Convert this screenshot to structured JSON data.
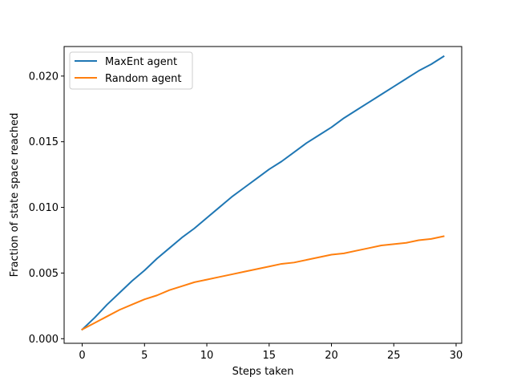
{
  "chart_data": {
    "type": "line",
    "xlabel": "Steps taken",
    "ylabel": "Fraction of state space reached",
    "xlim": [
      -1.45,
      30.45
    ],
    "ylim": [
      -0.00035,
      0.02225
    ],
    "xticks": [
      0,
      5,
      10,
      15,
      20,
      25,
      30
    ],
    "yticks": [
      0.0,
      0.005,
      0.01,
      0.015,
      0.02
    ],
    "xtick_labels": [
      "0",
      "5",
      "10",
      "15",
      "20",
      "25",
      "30"
    ],
    "ytick_labels": [
      "0.000",
      "0.005",
      "0.010",
      "0.015",
      "0.020"
    ],
    "grid": false,
    "legend_position": "upper-left",
    "series": [
      {
        "name": "MaxEnt agent",
        "color": "#1f77b4",
        "x": [
          0,
          1,
          2,
          3,
          4,
          5,
          6,
          7,
          8,
          9,
          10,
          11,
          12,
          13,
          14,
          15,
          16,
          17,
          18,
          19,
          20,
          21,
          22,
          23,
          24,
          25,
          26,
          27,
          28,
          29
        ],
        "values": [
          0.0007,
          0.0016,
          0.0026,
          0.0035,
          0.0044,
          0.0052,
          0.0061,
          0.0069,
          0.0077,
          0.0084,
          0.0092,
          0.01,
          0.0108,
          0.0115,
          0.0122,
          0.0129,
          0.0135,
          0.0142,
          0.0149,
          0.0155,
          0.0161,
          0.0168,
          0.0174,
          0.018,
          0.0186,
          0.0192,
          0.0198,
          0.0204,
          0.0209,
          0.0215
        ]
      },
      {
        "name": "Random agent",
        "color": "#ff7f0e",
        "x": [
          0,
          1,
          2,
          3,
          4,
          5,
          6,
          7,
          8,
          9,
          10,
          11,
          12,
          13,
          14,
          15,
          16,
          17,
          18,
          19,
          20,
          21,
          22,
          23,
          24,
          25,
          26,
          27,
          28,
          29
        ],
        "values": [
          0.0007,
          0.0012,
          0.0017,
          0.0022,
          0.0026,
          0.003,
          0.0033,
          0.0037,
          0.004,
          0.0043,
          0.0045,
          0.0047,
          0.0049,
          0.0051,
          0.0053,
          0.0055,
          0.0057,
          0.0058,
          0.006,
          0.0062,
          0.0064,
          0.0065,
          0.0067,
          0.0069,
          0.0071,
          0.0072,
          0.0073,
          0.0075,
          0.0076,
          0.0078
        ]
      }
    ]
  }
}
